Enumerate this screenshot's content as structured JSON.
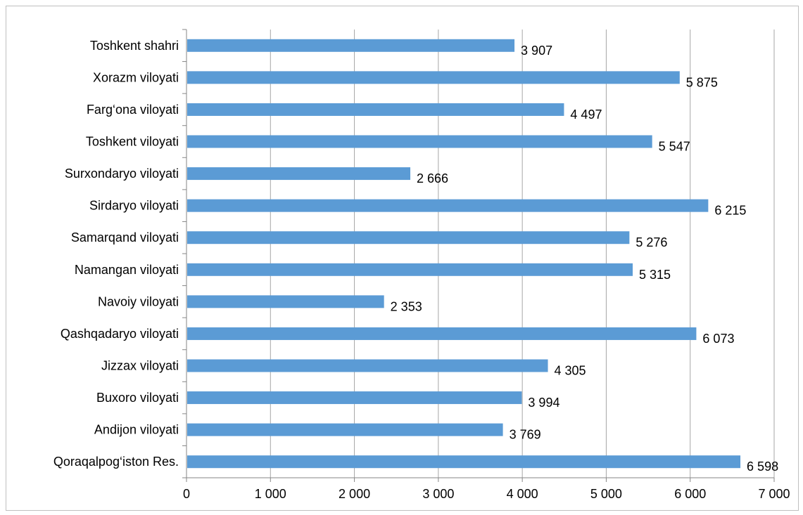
{
  "chart_data": {
    "type": "bar",
    "orientation": "horizontal",
    "title": "",
    "xlabel": "",
    "ylabel": "",
    "categories": [
      "Toshkent shahri",
      "Xorazm viloyati",
      "Farg‘ona viloyati",
      "Toshkent viloyati",
      "Surxondaryo viloyati",
      "Sirdaryo viloyati",
      "Samarqand viloyati",
      "Namangan viloyati",
      "Navoiy viloyati",
      "Qashqadaryo viloyati",
      "Jizzax viloyati",
      "Buxoro viloyati",
      "Andijon viloyati",
      "Qoraqalpog‘iston Res."
    ],
    "values": [
      3907,
      5875,
      4497,
      5547,
      2666,
      6215,
      5276,
      5315,
      2353,
      6073,
      4305,
      3994,
      3769,
      6598
    ],
    "value_labels": [
      "3 907",
      "5 875",
      "4 497",
      "5 547",
      "2 666",
      "6 215",
      "5 276",
      "5 315",
      "2 353",
      "6 073",
      "4 305",
      "3 994",
      "3 769",
      "6 598"
    ],
    "x_ticks": [
      0,
      1000,
      2000,
      3000,
      4000,
      5000,
      6000,
      7000
    ],
    "x_tick_labels": [
      "0",
      "1 000",
      "2 000",
      "3 000",
      "4 000",
      "5 000",
      "6 000",
      "7 000"
    ],
    "xlim": [
      0,
      7000
    ],
    "grid": "vertical",
    "legend": "none",
    "bar_color": "#5b9bd5",
    "grid_color": "#a6a6a6"
  }
}
